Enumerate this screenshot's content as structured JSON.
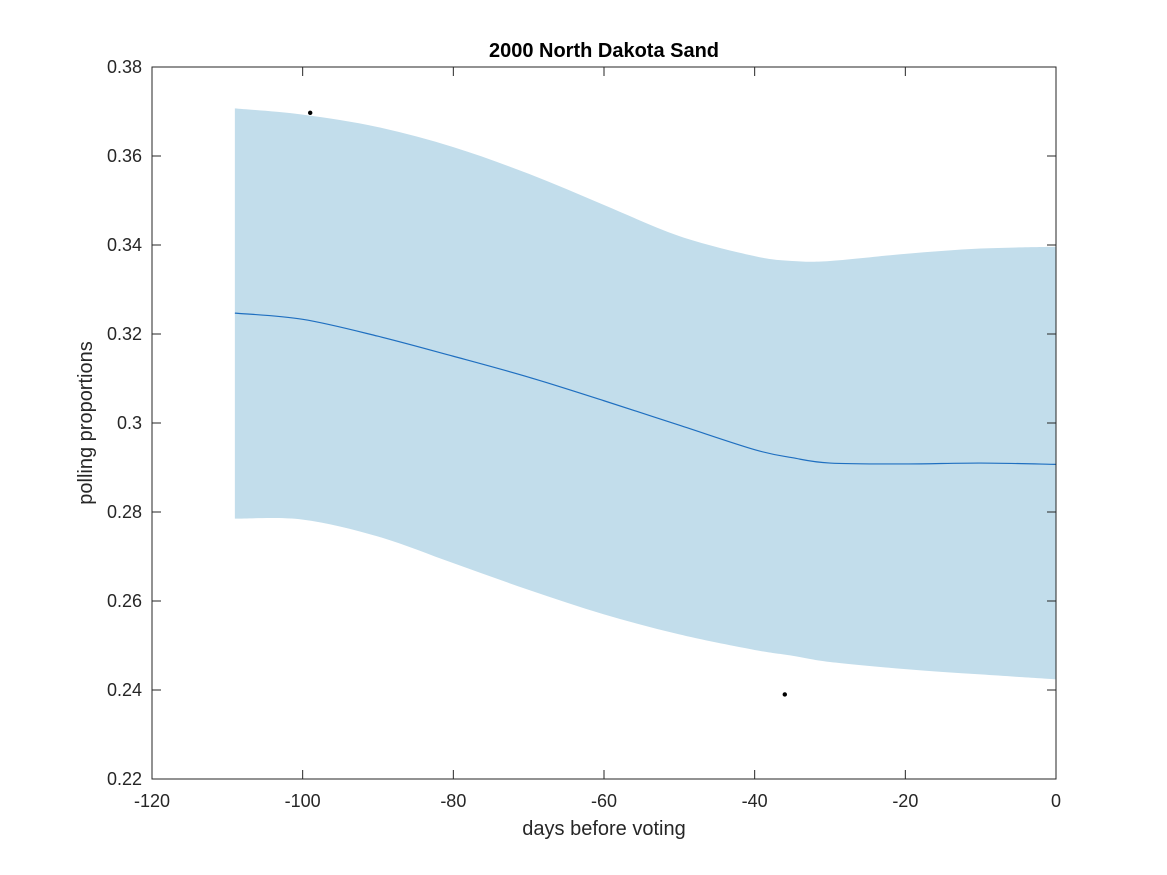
{
  "chart_data": {
    "type": "line",
    "title": "2000 North Dakota Sand",
    "xlabel": "days before voting",
    "ylabel": "polling proportions",
    "xlim": [
      -120,
      0
    ],
    "ylim": [
      0.22,
      0.38
    ],
    "xticks": [
      -120,
      -100,
      -80,
      -60,
      -40,
      -20,
      0
    ],
    "yticks": [
      0.22,
      0.24,
      0.26,
      0.28,
      0.3,
      0.32,
      0.34,
      0.36,
      0.38
    ],
    "grid": false,
    "legend": "none",
    "series": [
      {
        "kind": "band",
        "color": "#c2ddeb",
        "x": [
          -109,
          -100,
          -90,
          -80,
          -70,
          -60,
          -50,
          -40,
          -35,
          -30,
          -20,
          -10,
          0
        ],
        "upper": [
          0.3707,
          0.3693,
          0.3665,
          0.362,
          0.356,
          0.349,
          0.342,
          0.3375,
          0.3364,
          0.3364,
          0.338,
          0.3392,
          0.3396
        ],
        "lower": [
          0.2785,
          0.2783,
          0.2745,
          0.2685,
          0.2625,
          0.257,
          0.2525,
          0.249,
          0.2477,
          0.2463,
          0.2447,
          0.2435,
          0.2424
        ]
      },
      {
        "kind": "line",
        "color": "#1f6fc0",
        "x": [
          -109,
          -100,
          -90,
          -80,
          -70,
          -60,
          -50,
          -40,
          -35,
          -30,
          -20,
          -10,
          0
        ],
        "y": [
          0.3247,
          0.3233,
          0.3195,
          0.315,
          0.3103,
          0.305,
          0.2995,
          0.294,
          0.2922,
          0.291,
          0.2908,
          0.291,
          0.2907
        ]
      },
      {
        "kind": "scatter",
        "color": "#000000",
        "x": [
          -99,
          -36
        ],
        "y": [
          0.3697,
          0.239
        ]
      }
    ]
  }
}
